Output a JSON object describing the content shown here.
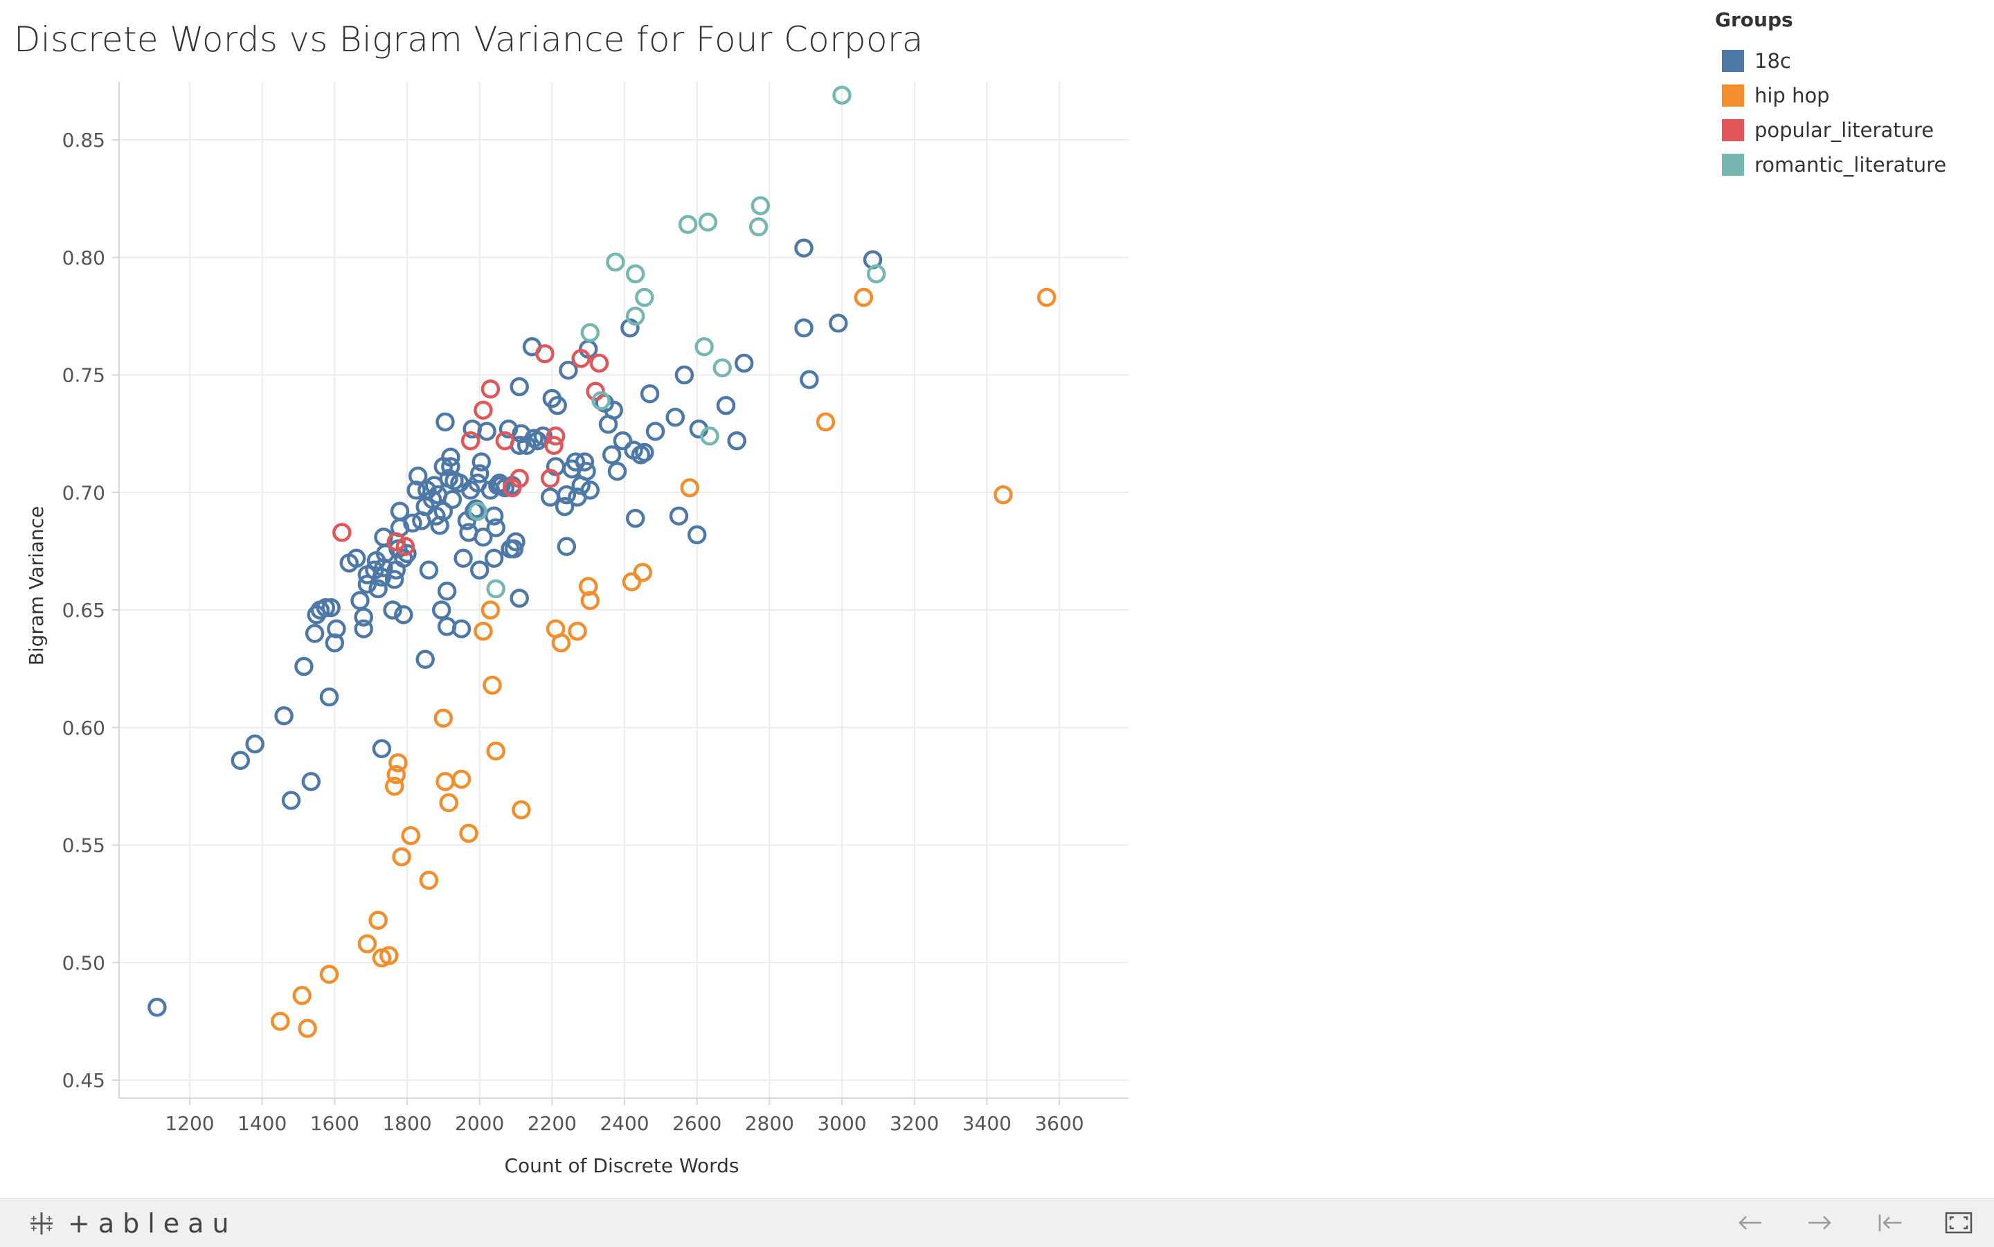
{
  "title": "Discrete Words vs Bigram Variance for Four Corpora",
  "legend": {
    "title": "Groups",
    "items": [
      {
        "label": "18c",
        "color": "#4e79a7"
      },
      {
        "label": "hip hop",
        "color": "#f28e2b"
      },
      {
        "label": "popular_literature",
        "color": "#e15759"
      },
      {
        "label": "romantic_literature",
        "color": "#76b7b2"
      }
    ]
  },
  "footer": {
    "brand": "+ableau",
    "buttons": [
      {
        "name": "undo-button",
        "icon": "arrow-left-icon"
      },
      {
        "name": "redo-button",
        "icon": "arrow-right-icon"
      },
      {
        "name": "revert-button",
        "icon": "revert-icon"
      },
      {
        "name": "fullscreen-button",
        "icon": "fullscreen-icon"
      }
    ]
  },
  "chart_data": {
    "type": "scatter",
    "title": "Discrete Words vs Bigram Variance for Four Corpora",
    "xlabel": "Count of Discrete Words",
    "ylabel": "Bigram Variance",
    "xlim": [
      1000,
      3800
    ],
    "ylim": [
      0.44,
      0.87
    ],
    "xticks": [
      1200,
      1400,
      1600,
      1800,
      2000,
      2200,
      2400,
      2600,
      2800,
      3000,
      3200,
      3400,
      3600
    ],
    "yticks": [
      0.45,
      0.5,
      0.55,
      0.6,
      0.65,
      0.7,
      0.75,
      0.8,
      0.85
    ],
    "ytick_labels": [
      "0.45",
      "0.50",
      "0.55",
      "0.60",
      "0.65",
      "0.70",
      "0.75",
      "0.80",
      "0.85"
    ],
    "grid": true,
    "marker": "hollow-circle",
    "legend_position": "top-right",
    "series": [
      {
        "name": "18c",
        "color": "#4e79a7",
        "points": [
          [
            1110,
            0.481
          ],
          [
            1340,
            0.586
          ],
          [
            1380,
            0.593
          ],
          [
            1460,
            0.605
          ],
          [
            1480,
            0.569
          ],
          [
            1515,
            0.626
          ],
          [
            1535,
            0.577
          ],
          [
            1545,
            0.64
          ],
          [
            1550,
            0.648
          ],
          [
            1560,
            0.65
          ],
          [
            1575,
            0.651
          ],
          [
            1585,
            0.613
          ],
          [
            1590,
            0.651
          ],
          [
            1600,
            0.636
          ],
          [
            1605,
            0.642
          ],
          [
            1640,
            0.67
          ],
          [
            1660,
            0.672
          ],
          [
            1670,
            0.654
          ],
          [
            1680,
            0.642
          ],
          [
            1680,
            0.647
          ],
          [
            1690,
            0.661
          ],
          [
            1690,
            0.665
          ],
          [
            1710,
            0.667
          ],
          [
            1715,
            0.671
          ],
          [
            1720,
            0.659
          ],
          [
            1730,
            0.591
          ],
          [
            1730,
            0.664
          ],
          [
            1735,
            0.668
          ],
          [
            1735,
            0.681
          ],
          [
            1740,
            0.674
          ],
          [
            1760,
            0.65
          ],
          [
            1765,
            0.663
          ],
          [
            1770,
            0.667
          ],
          [
            1775,
            0.676
          ],
          [
            1780,
            0.685
          ],
          [
            1780,
            0.692
          ],
          [
            1790,
            0.648
          ],
          [
            1790,
            0.672
          ],
          [
            1800,
            0.674
          ],
          [
            1815,
            0.687
          ],
          [
            1825,
            0.701
          ],
          [
            1830,
            0.707
          ],
          [
            1840,
            0.688
          ],
          [
            1850,
            0.629
          ],
          [
            1850,
            0.694
          ],
          [
            1855,
            0.701
          ],
          [
            1860,
            0.667
          ],
          [
            1870,
            0.697
          ],
          [
            1875,
            0.703
          ],
          [
            1880,
            0.69
          ],
          [
            1885,
            0.699
          ],
          [
            1890,
            0.686
          ],
          [
            1895,
            0.65
          ],
          [
            1900,
            0.692
          ],
          [
            1900,
            0.711
          ],
          [
            1905,
            0.73
          ],
          [
            1910,
            0.643
          ],
          [
            1910,
            0.658
          ],
          [
            1915,
            0.706
          ],
          [
            1920,
            0.711
          ],
          [
            1920,
            0.715
          ],
          [
            1925,
            0.697
          ],
          [
            1930,
            0.705
          ],
          [
            1945,
            0.704
          ],
          [
            1950,
            0.642
          ],
          [
            1955,
            0.672
          ],
          [
            1965,
            0.688
          ],
          [
            1970,
            0.683
          ],
          [
            1975,
            0.701
          ],
          [
            1980,
            0.727
          ],
          [
            1985,
            0.692
          ],
          [
            1990,
            0.693
          ],
          [
            1995,
            0.704
          ],
          [
            2000,
            0.667
          ],
          [
            2000,
            0.708
          ],
          [
            2005,
            0.713
          ],
          [
            2010,
            0.681
          ],
          [
            2020,
            0.726
          ],
          [
            2030,
            0.701
          ],
          [
            2040,
            0.672
          ],
          [
            2040,
            0.69
          ],
          [
            2045,
            0.685
          ],
          [
            2050,
            0.703
          ],
          [
            2055,
            0.704
          ],
          [
            2060,
            0.703
          ],
          [
            2070,
            0.702
          ],
          [
            2080,
            0.727
          ],
          [
            2085,
            0.676
          ],
          [
            2090,
            0.703
          ],
          [
            2095,
            0.676
          ],
          [
            2100,
            0.679
          ],
          [
            2110,
            0.655
          ],
          [
            2110,
            0.72
          ],
          [
            2110,
            0.745
          ],
          [
            2115,
            0.725
          ],
          [
            2130,
            0.72
          ],
          [
            2145,
            0.762
          ],
          [
            2150,
            0.723
          ],
          [
            2160,
            0.722
          ],
          [
            2175,
            0.724
          ],
          [
            2195,
            0.698
          ],
          [
            2200,
            0.74
          ],
          [
            2210,
            0.711
          ],
          [
            2215,
            0.737
          ],
          [
            2235,
            0.694
          ],
          [
            2240,
            0.677
          ],
          [
            2240,
            0.699
          ],
          [
            2245,
            0.752
          ],
          [
            2255,
            0.71
          ],
          [
            2265,
            0.713
          ],
          [
            2270,
            0.698
          ],
          [
            2280,
            0.703
          ],
          [
            2290,
            0.713
          ],
          [
            2295,
            0.709
          ],
          [
            2300,
            0.761
          ],
          [
            2305,
            0.701
          ],
          [
            2345,
            0.738
          ],
          [
            2355,
            0.729
          ],
          [
            2365,
            0.716
          ],
          [
            2370,
            0.735
          ],
          [
            2380,
            0.709
          ],
          [
            2395,
            0.722
          ],
          [
            2415,
            0.77
          ],
          [
            2425,
            0.718
          ],
          [
            2430,
            0.689
          ],
          [
            2445,
            0.716
          ],
          [
            2455,
            0.717
          ],
          [
            2470,
            0.742
          ],
          [
            2485,
            0.726
          ],
          [
            2540,
            0.732
          ],
          [
            2550,
            0.69
          ],
          [
            2565,
            0.75
          ],
          [
            2600,
            0.682
          ],
          [
            2605,
            0.727
          ],
          [
            2680,
            0.737
          ],
          [
            2710,
            0.722
          ],
          [
            2730,
            0.755
          ],
          [
            2895,
            0.77
          ],
          [
            2895,
            0.804
          ],
          [
            2910,
            0.748
          ],
          [
            2990,
            0.772
          ],
          [
            3085,
            0.799
          ]
        ]
      },
      {
        "name": "hip hop",
        "color": "#f28e2b",
        "points": [
          [
            1450,
            0.475
          ],
          [
            1510,
            0.486
          ],
          [
            1525,
            0.472
          ],
          [
            1585,
            0.495
          ],
          [
            1690,
            0.508
          ],
          [
            1720,
            0.518
          ],
          [
            1730,
            0.502
          ],
          [
            1750,
            0.503
          ],
          [
            1765,
            0.575
          ],
          [
            1770,
            0.58
          ],
          [
            1775,
            0.585
          ],
          [
            1785,
            0.545
          ],
          [
            1810,
            0.554
          ],
          [
            1860,
            0.535
          ],
          [
            1900,
            0.604
          ],
          [
            1905,
            0.577
          ],
          [
            1915,
            0.568
          ],
          [
            1950,
            0.578
          ],
          [
            1970,
            0.555
          ],
          [
            2010,
            0.641
          ],
          [
            2030,
            0.65
          ],
          [
            2035,
            0.618
          ],
          [
            2045,
            0.59
          ],
          [
            2115,
            0.565
          ],
          [
            2210,
            0.642
          ],
          [
            2225,
            0.636
          ],
          [
            2270,
            0.641
          ],
          [
            2300,
            0.66
          ],
          [
            2305,
            0.654
          ],
          [
            2420,
            0.662
          ],
          [
            2450,
            0.666
          ],
          [
            2580,
            0.702
          ],
          [
            2955,
            0.73
          ],
          [
            3060,
            0.783
          ],
          [
            3445,
            0.699
          ],
          [
            3565,
            0.783
          ]
        ]
      },
      {
        "name": "popular_literature",
        "color": "#e15759",
        "points": [
          [
            1620,
            0.683
          ],
          [
            1770,
            0.679
          ],
          [
            1795,
            0.677
          ],
          [
            1975,
            0.722
          ],
          [
            2010,
            0.735
          ],
          [
            2030,
            0.744
          ],
          [
            2070,
            0.722
          ],
          [
            2090,
            0.702
          ],
          [
            2110,
            0.706
          ],
          [
            2180,
            0.759
          ],
          [
            2195,
            0.706
          ],
          [
            2205,
            0.72
          ],
          [
            2210,
            0.724
          ],
          [
            2280,
            0.757
          ],
          [
            2320,
            0.743
          ],
          [
            2330,
            0.755
          ]
        ]
      },
      {
        "name": "romantic_literature",
        "color": "#76b7b2",
        "points": [
          [
            1995,
            0.692
          ],
          [
            2045,
            0.659
          ],
          [
            2305,
            0.768
          ],
          [
            2335,
            0.739
          ],
          [
            2375,
            0.798
          ],
          [
            2430,
            0.793
          ],
          [
            2430,
            0.775
          ],
          [
            2455,
            0.783
          ],
          [
            2575,
            0.814
          ],
          [
            2620,
            0.762
          ],
          [
            2630,
            0.815
          ],
          [
            2635,
            0.724
          ],
          [
            2670,
            0.753
          ],
          [
            2770,
            0.813
          ],
          [
            2775,
            0.822
          ],
          [
            3000,
            0.869
          ],
          [
            3095,
            0.793
          ]
        ]
      }
    ]
  }
}
